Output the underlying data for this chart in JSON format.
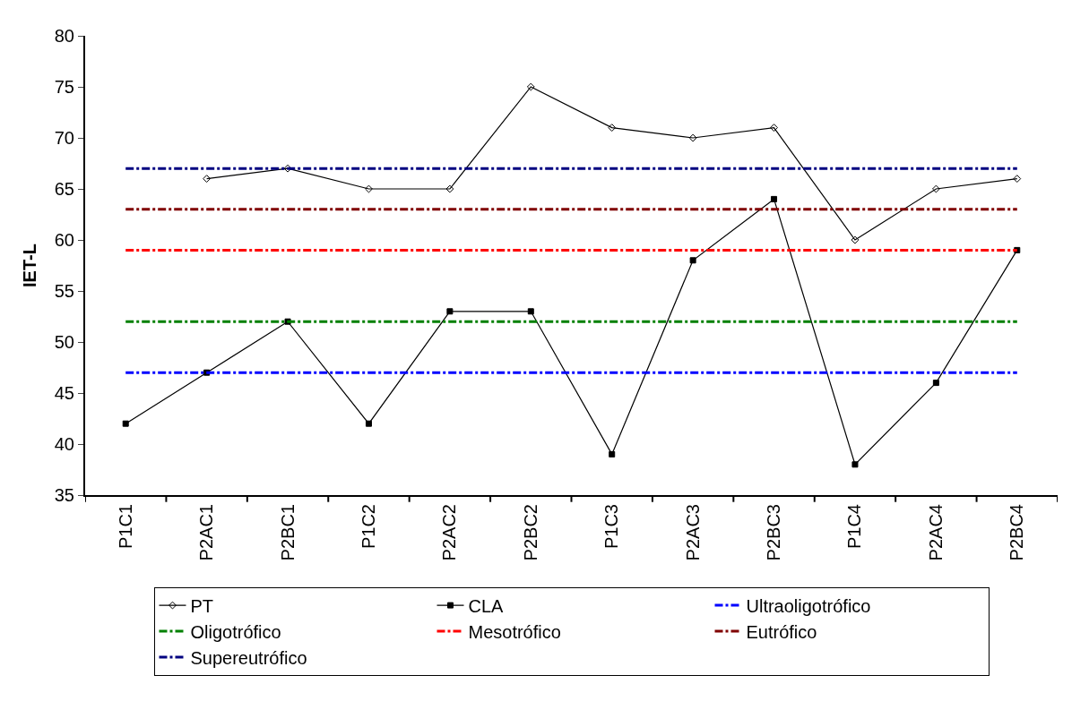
{
  "chart_data": {
    "type": "line",
    "ylabel": "IET-L",
    "categories": [
      "P1C1",
      "P2AC1",
      "P2BC1",
      "P1C2",
      "P2AC2",
      "P2BC2",
      "P1C3",
      "P2AC3",
      "P2BC3",
      "P1C4",
      "P2AC4",
      "P2BC4"
    ],
    "series": [
      {
        "name": "PT",
        "color": "#000000",
        "marker": "diamond",
        "values": [
          null,
          66,
          67,
          65,
          65,
          75,
          71,
          70,
          71,
          60,
          65,
          66
        ]
      },
      {
        "name": "CLA",
        "color": "#000000",
        "marker": "square",
        "values": [
          42,
          47,
          52,
          42,
          53,
          53,
          39,
          58,
          64,
          38,
          46,
          59
        ]
      }
    ],
    "ref_lines": [
      {
        "axis": "y",
        "value": 47,
        "label": "Ultraoligotrófico",
        "color": "#0000ff",
        "line_style": "dashed"
      },
      {
        "axis": "y",
        "value": 52,
        "label": "Oligotrófico",
        "color": "#008000",
        "line_style": "dashed"
      },
      {
        "axis": "y",
        "value": 59,
        "label": "Mesotrófico",
        "color": "#ff0000",
        "line_style": "dashed"
      },
      {
        "axis": "y",
        "value": 63,
        "label": "Eutrófico",
        "color": "#800000",
        "line_style": "dashed"
      },
      {
        "axis": "y",
        "value": 67,
        "label": "Supereutrófico",
        "color": "#000080",
        "line_style": "dashed"
      }
    ],
    "ylim": [
      35,
      80
    ],
    "yticks": [
      35,
      40,
      45,
      50,
      55,
      60,
      65,
      70,
      75,
      80
    ],
    "grid": false,
    "legend": "bottom",
    "line_style": "solid"
  }
}
